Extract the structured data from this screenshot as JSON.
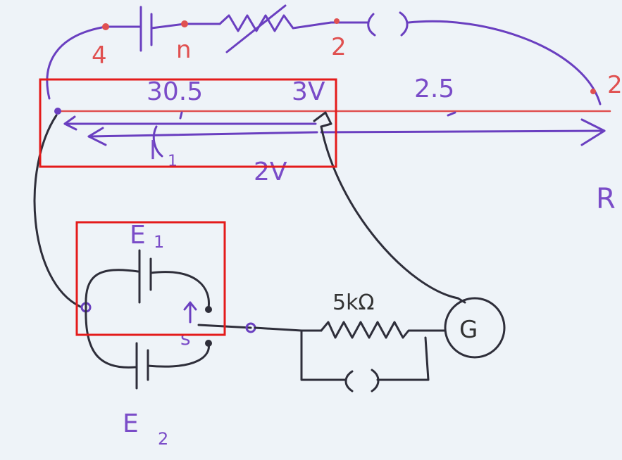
{
  "labels": {
    "node_4": "4",
    "node_n": "n",
    "node_2": "2",
    "node_right": "2",
    "length_upper": "30.5",
    "voltage_3v": "3V",
    "length_right": "2.5",
    "l1": "l",
    "l1_sub": "1",
    "voltage_2v": "2V",
    "wire_R": "R",
    "E1": "E",
    "E1_sub": "1",
    "E2": "E",
    "E2_sub": "2",
    "switch_s": "s",
    "resistor_value": "5kΩ",
    "galvanometer": "G"
  },
  "colors": {
    "ink_purple": "#6a3fc0",
    "ink_dark": "#2e2e3a",
    "ink_red": "#e05050",
    "highlight_box": "#e41b1b",
    "board": "#eef3f8"
  }
}
